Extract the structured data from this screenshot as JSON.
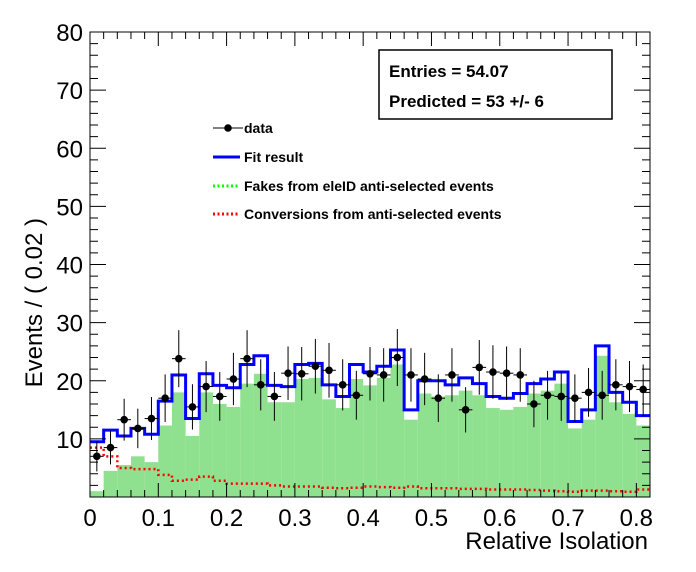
{
  "chart_data": {
    "type": "bar",
    "title": "",
    "xlabel": "Relative Isolation",
    "ylabel": "Events / ( 0.02 )",
    "xlim": [
      0,
      0.82
    ],
    "ylim": [
      0,
      80
    ],
    "grid": false,
    "legend_position": "top-left",
    "x_ticks": [
      "0",
      "0.1",
      "0.2",
      "0.3",
      "0.4",
      "0.5",
      "0.6",
      "0.7",
      "0.8"
    ],
    "y_ticks": [
      "10",
      "20",
      "30",
      "40",
      "50",
      "60",
      "70",
      "80"
    ],
    "stats_box": {
      "line1": "Entries =  54.07",
      "line2": "Predicted = 53 +/- 6"
    },
    "legend": [
      {
        "label": "data",
        "style": "marker",
        "color": "#000000"
      },
      {
        "label": "Fit result",
        "style": "solid",
        "color": "#0000ff"
      },
      {
        "label": "Fakes from eleID anti-selected events",
        "style": "dotted",
        "color": "#00ff00"
      },
      {
        "label": "Conversions from anti-selected events",
        "style": "dotted",
        "color": "#ff0000"
      }
    ],
    "bin_width": 0.02,
    "bin_edges": [
      0,
      0.02,
      0.04,
      0.06,
      0.08,
      0.1,
      0.12,
      0.14,
      0.16,
      0.18,
      0.2,
      0.22,
      0.24,
      0.26,
      0.28,
      0.3,
      0.32,
      0.34,
      0.36,
      0.38,
      0.4,
      0.42,
      0.44,
      0.46,
      0.48,
      0.5,
      0.52,
      0.54,
      0.56,
      0.58,
      0.6,
      0.62,
      0.64,
      0.66,
      0.68,
      0.7,
      0.72,
      0.74,
      0.76,
      0.78,
      0.8,
      0.82
    ],
    "series": [
      {
        "name": "data",
        "x": [
          0.01,
          0.03,
          0.05,
          0.07,
          0.09,
          0.11,
          0.13,
          0.15,
          0.17,
          0.19,
          0.21,
          0.23,
          0.25,
          0.27,
          0.29,
          0.31,
          0.33,
          0.35,
          0.37,
          0.39,
          0.41,
          0.43,
          0.45,
          0.47,
          0.49,
          0.51,
          0.53,
          0.55,
          0.57,
          0.59,
          0.61,
          0.63,
          0.65,
          0.67,
          0.69,
          0.71,
          0.73,
          0.75,
          0.77,
          0.79,
          0.81
        ],
        "y": [
          7,
          8.5,
          13.3,
          11.8,
          13.5,
          17,
          23.8,
          15.5,
          19,
          17.3,
          20.3,
          23.8,
          19.3,
          17.3,
          21.3,
          21.2,
          22.5,
          21.8,
          19.3,
          17.5,
          21.2,
          21,
          24,
          21,
          20.3,
          17,
          21,
          15,
          22.3,
          21.5,
          21.3,
          21,
          16,
          17.5,
          17.3,
          17,
          18,
          17.5,
          19.3,
          19,
          18.5
        ],
        "yerr": [
          2.6,
          2.9,
          3.6,
          3.4,
          3.7,
          4.1,
          4.9,
          3.9,
          4.4,
          4.2,
          4.5,
          4.9,
          4.4,
          4.2,
          4.6,
          4.6,
          4.7,
          4.7,
          4.4,
          4.2,
          4.6,
          4.6,
          4.9,
          4.6,
          4.5,
          4.1,
          4.6,
          3.9,
          4.7,
          4.6,
          4.6,
          4.6,
          4.0,
          4.2,
          4.2,
          4.1,
          4.2,
          4.2,
          4.4,
          4.4,
          4.3
        ],
        "color": "#000000"
      },
      {
        "name": "Fit result",
        "values": [
          9.5,
          11.5,
          10.5,
          11.8,
          10.8,
          16.5,
          21,
          13.5,
          21.2,
          19.2,
          18.8,
          22.8,
          24.3,
          19.2,
          19,
          22.8,
          23,
          19.3,
          17.3,
          22.8,
          21.5,
          22.5,
          25.3,
          15,
          20,
          20,
          19.3,
          20.5,
          19.5,
          17.3,
          17,
          17.8,
          19.5,
          20.3,
          21.5,
          13,
          15,
          26,
          18,
          16.3,
          14
        ],
        "color": "#0000ff"
      },
      {
        "name": "Fakes from eleID anti-selected events",
        "values": [
          1,
          4.5,
          5.5,
          7,
          6,
          12.3,
          18,
          10.5,
          18,
          16,
          15.5,
          19.5,
          21.2,
          16.3,
          16.3,
          20.3,
          20.5,
          16.8,
          15.3,
          20.3,
          19.2,
          20.5,
          22.8,
          13.3,
          17.8,
          17.3,
          17.5,
          18.3,
          17.5,
          15.3,
          15,
          15.5,
          17.8,
          18.3,
          19.5,
          11.8,
          13.3,
          24.3,
          16.3,
          14.3,
          12.3
        ],
        "color": "#00ff00"
      },
      {
        "name": "Conversions from anti-selected events",
        "values": [
          8.5,
          7,
          5,
          4.8,
          4.8,
          3.8,
          2.8,
          3,
          3.5,
          2.8,
          2.3,
          2.3,
          2.3,
          2,
          1.8,
          1.8,
          1.8,
          1.6,
          1.5,
          1.6,
          1.8,
          1.7,
          1.6,
          1.8,
          1.5,
          1.5,
          1.5,
          1.4,
          1.4,
          1.3,
          1.3,
          1.3,
          1.2,
          1.1,
          1,
          0.9,
          1.1,
          1.1,
          1,
          0.9,
          1.3
        ],
        "color": "#ff0000"
      }
    ]
  }
}
